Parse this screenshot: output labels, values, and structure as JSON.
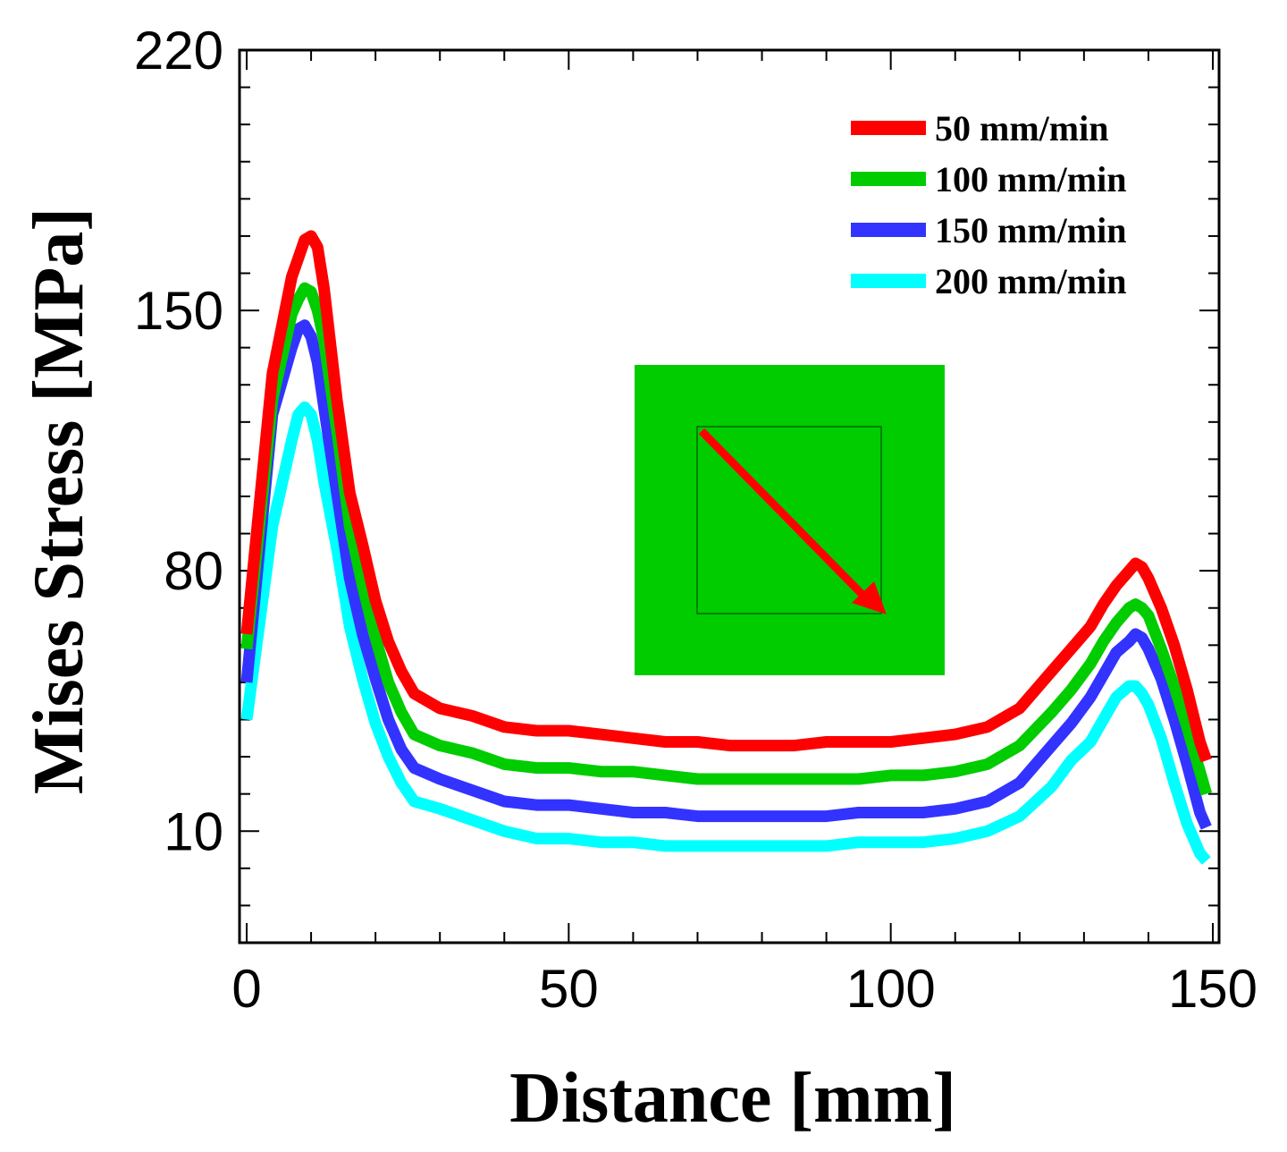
{
  "chart_data": {
    "type": "line",
    "title": "",
    "xlabel": "Distance [mm]",
    "ylabel": "Mises Stress [MPa]",
    "xlim": [
      0,
      150
    ],
    "ylim": [
      -20,
      220
    ],
    "xticks": [
      0,
      50,
      100,
      150
    ],
    "yticks": [
      10,
      80,
      150,
      220
    ],
    "x_tick_labels": [
      "0",
      "50",
      "100",
      "150"
    ],
    "y_tick_labels": [
      "10",
      "80",
      "150",
      "220"
    ],
    "grid": false,
    "legend_position": "top-right",
    "x": [
      0,
      4,
      7,
      8,
      9,
      10,
      11,
      12,
      14,
      16,
      18,
      20,
      22,
      24,
      26,
      30,
      35,
      40,
      45,
      50,
      55,
      60,
      65,
      70,
      75,
      80,
      85,
      90,
      95,
      100,
      105,
      110,
      115,
      120,
      125,
      128,
      131,
      133,
      135,
      137,
      138,
      139,
      140,
      142,
      144,
      146,
      148,
      149
    ],
    "series": [
      {
        "name": "50 mm/min",
        "color": "#ff0000",
        "values": [
          63,
          133,
          159,
          164,
          169,
          170,
          167,
          156,
          126,
          101,
          87,
          72,
          61,
          53,
          47,
          43,
          41,
          38,
          37,
          37,
          36,
          35,
          34,
          34,
          33,
          33,
          33,
          34,
          34,
          34,
          35,
          36,
          38,
          43,
          53,
          59,
          65,
          71,
          76,
          80,
          82,
          81,
          78,
          70,
          60,
          48,
          34,
          29
        ]
      },
      {
        "name": "100 mm/min",
        "color": "#00cc00",
        "values": [
          59,
          126,
          149,
          153,
          156,
          155,
          150,
          142,
          118,
          92,
          76,
          62,
          50,
          42,
          36,
          33,
          31,
          28,
          27,
          27,
          26,
          26,
          25,
          24,
          24,
          24,
          24,
          24,
          24,
          25,
          25,
          26,
          28,
          33,
          42,
          48,
          55,
          61,
          66,
          70,
          71,
          70,
          68,
          59,
          49,
          38,
          26,
          20
        ]
      },
      {
        "name": "150 mm/min",
        "color": "#3333ff",
        "values": [
          50,
          122,
          140,
          145,
          146,
          143,
          136,
          124,
          101,
          78,
          63,
          51,
          40,
          32,
          27,
          24,
          21,
          18,
          17,
          17,
          16,
          15,
          15,
          14,
          14,
          14,
          14,
          14,
          15,
          15,
          15,
          16,
          18,
          23,
          33,
          39,
          46,
          52,
          58,
          61,
          63,
          62,
          59,
          51,
          40,
          28,
          15,
          11
        ]
      },
      {
        "name": "200 mm/min",
        "color": "#00ffff",
        "values": [
          40,
          92,
          115,
          122,
          124,
          122,
          115,
          104,
          86,
          65,
          51,
          39,
          30,
          23,
          18,
          16,
          13,
          10,
          8,
          8,
          7,
          7,
          6,
          6,
          6,
          6,
          6,
          6,
          7,
          7,
          7,
          8,
          10,
          14,
          22,
          29,
          34,
          40,
          46,
          49,
          49,
          47,
          44,
          35,
          23,
          12,
          4,
          2
        ]
      }
    ],
    "legend": [
      "50 mm/min",
      "100 mm/min",
      "150 mm/min",
      "200 mm/min"
    ],
    "inset": {
      "description": "square plate with diagonal path",
      "plate_color": "#00cc00",
      "arrow_color": "#ff0000"
    }
  }
}
